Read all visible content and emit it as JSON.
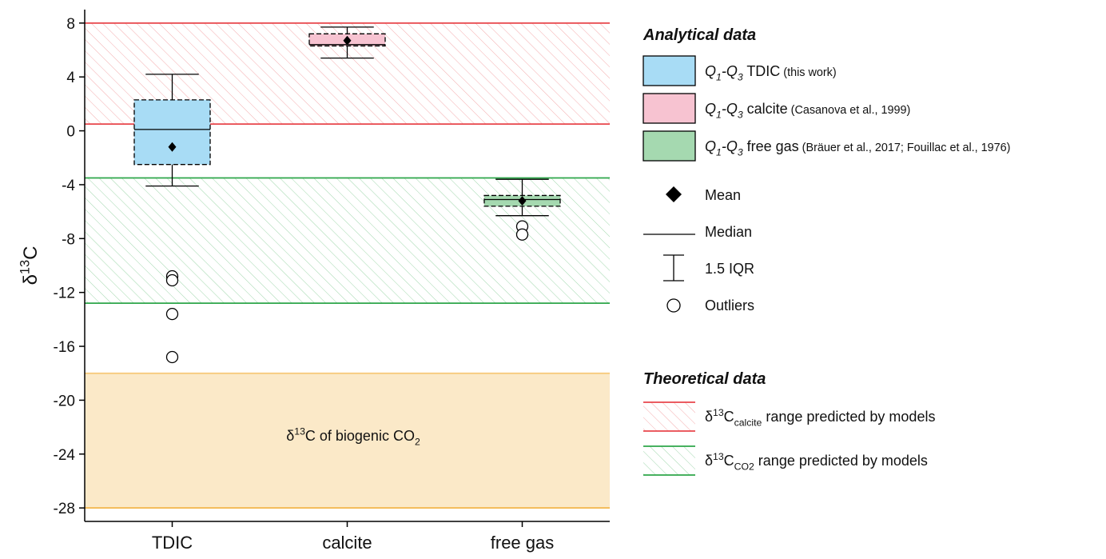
{
  "chart_data": {
    "type": "box",
    "ylabel": [
      "δ",
      "13",
      "C"
    ],
    "categories": [
      "TDIC",
      "calcite",
      "free gas"
    ],
    "ylim": [
      -29,
      9
    ],
    "yticks": [
      8,
      4,
      0,
      -4,
      -8,
      -12,
      -16,
      -20,
      -24,
      -28
    ],
    "boxes": [
      {
        "whislo": -4.1,
        "q1": -2.5,
        "med": 0.1,
        "q3": 2.3,
        "whishi": 4.2,
        "mean": -1.2,
        "fliers": [
          -10.8,
          -11.1,
          -13.6,
          -16.8
        ],
        "color": "#a8dcf5"
      },
      {
        "whislo": 5.4,
        "q1": 6.3,
        "med": 6.4,
        "q3": 7.2,
        "whishi": 7.7,
        "mean": 6.7,
        "fliers": [],
        "color": "#f7c3d1"
      },
      {
        "whislo": -6.3,
        "q1": -5.6,
        "med": -5.1,
        "q3": -4.8,
        "whishi": -3.6,
        "mean": -5.2,
        "fliers": [
          -7.1,
          -7.7
        ],
        "color": "#a5d9b0"
      }
    ],
    "bands": [
      {
        "range": [
          0.5,
          8
        ],
        "color": "#e8464b",
        "hatch": true
      },
      {
        "range": [
          -12.8,
          -3.5
        ],
        "color": "#2ea64a",
        "hatch": true
      },
      {
        "range": [
          -28,
          -18
        ],
        "color": "#f3b54a",
        "hatch": false
      }
    ],
    "annotation": [
      "δ",
      "13",
      "C of biogenic CO",
      "2"
    ],
    "legend": {
      "analytical_title": "Analytical data",
      "analytical_items": [
        [
          "Q",
          "1",
          "-Q",
          "3",
          " TDIC",
          " (this work)"
        ],
        [
          "Q",
          "1",
          "-Q",
          "3",
          " calcite",
          " (Casanova et al., 1999)"
        ],
        [
          "Q",
          "1",
          "-Q",
          "3",
          " free gas",
          " (Bräuer et al., 2017; Fouillac et al., 1976)"
        ],
        "Mean",
        "Median",
        "1.5 IQR",
        "Outliers"
      ],
      "theoretical_title": "Theoretical data",
      "theoretical_items": [
        [
          "δ",
          "13",
          "C",
          "calcite",
          " range predicted by models"
        ],
        [
          "δ",
          "13",
          "C",
          "CO2",
          " range predicted by models"
        ]
      ]
    }
  }
}
